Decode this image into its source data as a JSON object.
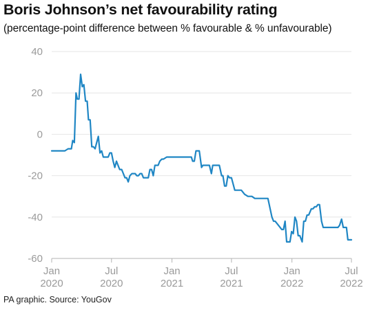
{
  "title": "Boris Johnson’s net favourability rating",
  "subtitle": "(percentage-point difference between % favourable & % unfavourable)",
  "source": "PA graphic. Source: YouGov",
  "colors": {
    "line": "#1f86c4",
    "axis": "#b3b3b3",
    "tick_text": "#9a9a9a",
    "grid": "#e6e6e6"
  },
  "chart_data": {
    "type": "line",
    "title": "Boris Johnson’s net favourability rating",
    "subtitle": "(percentage-point difference between % favourable & % unfavourable)",
    "xlabel": "",
    "ylabel": "",
    "ylim": [
      -60,
      40
    ],
    "xlim": [
      "2020-01-01",
      "2022-07-01"
    ],
    "grid": true,
    "y_ticks": [
      40,
      20,
      0,
      -20,
      -40,
      -60
    ],
    "y_tick_labels": [
      "40",
      "20",
      "0",
      "-20",
      "-40",
      "-60"
    ],
    "x_ticks": [
      {
        "date": "2020-01-01",
        "month": "Jan",
        "year": "2020"
      },
      {
        "date": "2020-07-01",
        "month": "Jul",
        "year": "2020"
      },
      {
        "date": "2021-01-01",
        "month": "Jan",
        "year": "2021"
      },
      {
        "date": "2021-07-01",
        "month": "Jul",
        "year": "2021"
      },
      {
        "date": "2022-01-01",
        "month": "Jan",
        "year": "2022"
      },
      {
        "date": "2022-07-01",
        "month": "Jul",
        "year": "2022"
      }
    ],
    "series": [
      {
        "color": "#1f86c4",
        "points": [
          [
            "2020-01-01",
            -8
          ],
          [
            "2020-02-10",
            -8
          ],
          [
            "2020-02-20",
            -7
          ],
          [
            "2020-03-01",
            -7
          ],
          [
            "2020-03-05",
            -3
          ],
          [
            "2020-03-10",
            -4
          ],
          [
            "2020-03-15",
            20
          ],
          [
            "2020-03-19",
            17
          ],
          [
            "2020-03-24",
            17
          ],
          [
            "2020-03-29",
            29
          ],
          [
            "2020-04-03",
            23
          ],
          [
            "2020-04-08",
            24
          ],
          [
            "2020-04-13",
            16
          ],
          [
            "2020-04-18",
            16
          ],
          [
            "2020-04-22",
            7
          ],
          [
            "2020-04-27",
            7
          ],
          [
            "2020-05-02",
            -6
          ],
          [
            "2020-05-07",
            -6
          ],
          [
            "2020-05-12",
            -7
          ],
          [
            "2020-05-17",
            -4
          ],
          [
            "2020-05-22",
            -1
          ],
          [
            "2020-05-27",
            -9
          ],
          [
            "2020-06-01",
            -8
          ],
          [
            "2020-06-06",
            -11
          ],
          [
            "2020-06-16",
            -11
          ],
          [
            "2020-06-21",
            -11
          ],
          [
            "2020-06-26",
            -9
          ],
          [
            "2020-07-01",
            -9
          ],
          [
            "2020-07-06",
            -13
          ],
          [
            "2020-07-11",
            -16
          ],
          [
            "2020-07-16",
            -13
          ],
          [
            "2020-07-21",
            -15
          ],
          [
            "2020-07-26",
            -17
          ],
          [
            "2020-08-01",
            -17
          ],
          [
            "2020-08-06",
            -19
          ],
          [
            "2020-08-11",
            -21
          ],
          [
            "2020-08-16",
            -21
          ],
          [
            "2020-08-21",
            -23
          ],
          [
            "2020-08-26",
            -20
          ],
          [
            "2020-09-01",
            -19
          ],
          [
            "2020-09-11",
            -19
          ],
          [
            "2020-09-16",
            -20
          ],
          [
            "2020-09-21",
            -20
          ],
          [
            "2020-09-26",
            -19
          ],
          [
            "2020-10-01",
            -19
          ],
          [
            "2020-10-06",
            -21
          ],
          [
            "2020-10-11",
            -21
          ],
          [
            "2020-10-21",
            -21
          ],
          [
            "2020-10-26",
            -17
          ],
          [
            "2020-10-31",
            -17
          ],
          [
            "2020-11-05",
            -20
          ],
          [
            "2020-11-10",
            -15
          ],
          [
            "2020-11-20",
            -15
          ],
          [
            "2020-11-25",
            -13
          ],
          [
            "2020-12-01",
            -12
          ],
          [
            "2020-12-06",
            -12
          ],
          [
            "2020-12-16",
            -11
          ],
          [
            "2021-01-10",
            -11
          ],
          [
            "2021-01-20",
            -11
          ],
          [
            "2021-02-01",
            -11
          ],
          [
            "2021-02-10",
            -11
          ],
          [
            "2021-02-20",
            -11
          ],
          [
            "2021-03-01",
            -11
          ],
          [
            "2021-03-05",
            -13
          ],
          [
            "2021-03-10",
            -13
          ],
          [
            "2021-03-15",
            -8
          ],
          [
            "2021-03-25",
            -8
          ],
          [
            "2021-04-01",
            -16
          ],
          [
            "2021-04-05",
            -15
          ],
          [
            "2021-04-15",
            -15
          ],
          [
            "2021-04-25",
            -15
          ],
          [
            "2021-05-01",
            -19
          ],
          [
            "2021-05-05",
            -15
          ],
          [
            "2021-05-15",
            -15
          ],
          [
            "2021-05-25",
            -15
          ],
          [
            "2021-06-01",
            -20
          ],
          [
            "2021-06-05",
            -20
          ],
          [
            "2021-06-10",
            -25
          ],
          [
            "2021-06-15",
            -25
          ],
          [
            "2021-06-20",
            -20
          ],
          [
            "2021-06-25",
            -21
          ],
          [
            "2021-07-01",
            -21
          ],
          [
            "2021-07-06",
            -24
          ],
          [
            "2021-07-11",
            -27
          ],
          [
            "2021-07-21",
            -27
          ],
          [
            "2021-07-31",
            -27
          ],
          [
            "2021-08-10",
            -29
          ],
          [
            "2021-08-20",
            -30
          ],
          [
            "2021-09-01",
            -30
          ],
          [
            "2021-09-10",
            -31
          ],
          [
            "2021-09-20",
            -31
          ],
          [
            "2021-10-01",
            -31
          ],
          [
            "2021-10-20",
            -31
          ],
          [
            "2021-11-01",
            -40
          ],
          [
            "2021-11-06",
            -42
          ],
          [
            "2021-11-11",
            -42
          ],
          [
            "2021-11-21",
            -44
          ],
          [
            "2021-12-01",
            -46
          ],
          [
            "2021-12-06",
            -46
          ],
          [
            "2021-12-11",
            -42
          ],
          [
            "2021-12-16",
            -52
          ],
          [
            "2021-12-21",
            -52
          ],
          [
            "2021-12-26",
            -52
          ],
          [
            "2021-12-31",
            -47
          ],
          [
            "2022-01-05",
            -48
          ],
          [
            "2022-01-10",
            -40
          ],
          [
            "2022-01-15",
            -42
          ],
          [
            "2022-01-20",
            -49
          ],
          [
            "2022-01-25",
            -49
          ],
          [
            "2022-02-01",
            -52
          ],
          [
            "2022-02-06",
            -42
          ],
          [
            "2022-02-11",
            -42
          ],
          [
            "2022-02-16",
            -39
          ],
          [
            "2022-02-21",
            -39
          ],
          [
            "2022-03-01",
            -36
          ],
          [
            "2022-03-06",
            -36
          ],
          [
            "2022-03-11",
            -35
          ],
          [
            "2022-03-16",
            -35
          ],
          [
            "2022-03-21",
            -34
          ],
          [
            "2022-03-26",
            -34
          ],
          [
            "2022-04-01",
            -42
          ],
          [
            "2022-04-06",
            -45
          ],
          [
            "2022-04-21",
            -45
          ],
          [
            "2022-05-06",
            -45
          ],
          [
            "2022-05-16",
            -45
          ],
          [
            "2022-05-21",
            -45
          ],
          [
            "2022-05-26",
            -44
          ],
          [
            "2022-06-01",
            -41
          ],
          [
            "2022-06-06",
            -45
          ],
          [
            "2022-06-11",
            -45
          ],
          [
            "2022-06-16",
            -45
          ],
          [
            "2022-06-20",
            -51
          ],
          [
            "2022-07-01",
            -51
          ]
        ]
      }
    ]
  }
}
